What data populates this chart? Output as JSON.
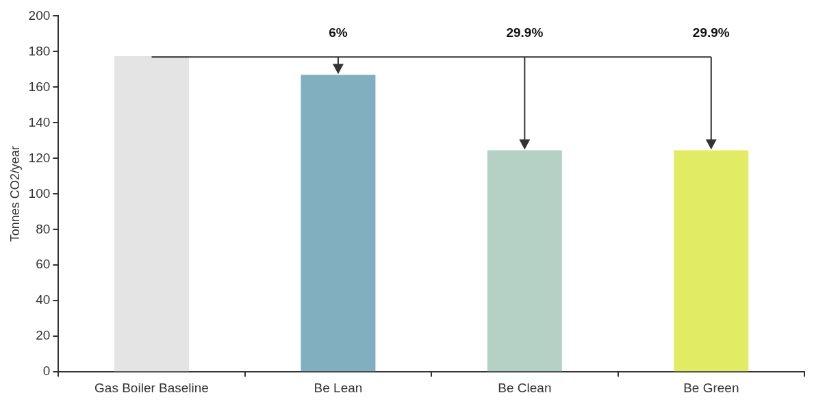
{
  "chart_data": {
    "type": "bar",
    "ylabel": "Tonnes CO2/year",
    "categories": [
      "Gas Boiler Baseline",
      "Be Lean",
      "Be Clean",
      "Be Green"
    ],
    "values": [
      177.5,
      167,
      124.5,
      124.5
    ],
    "colors": [
      "#e4e4e4",
      "#81afbf",
      "#b5d1c5",
      "#e2eb64"
    ],
    "ylim": [
      0,
      200
    ],
    "yticks": [
      0,
      20,
      40,
      60,
      80,
      100,
      120,
      140,
      160,
      180,
      200
    ],
    "grid": false,
    "legend": false,
    "ref_lines": [
      {
        "axis": "y",
        "value": 177,
        "color": "#333333"
      }
    ],
    "annotations": [
      "6%",
      "29.9%",
      "29.9%"
    ]
  }
}
